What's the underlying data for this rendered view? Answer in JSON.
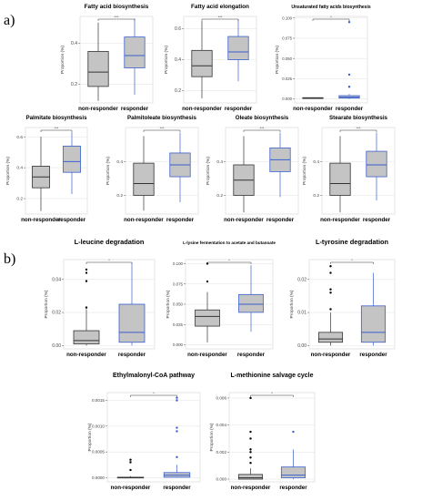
{
  "panels": [
    "a)",
    "b)"
  ],
  "chart_data": [
    {
      "type": "box",
      "title": "Fatty acid biosynthesis",
      "ylabel": "Proportion (%)",
      "categories": [
        "non-responder",
        "responder"
      ],
      "yticks": [
        "0.2",
        "0.4"
      ],
      "ylim": [
        0.11,
        0.53
      ],
      "significance": "***",
      "boxes": [
        {
          "group": "non-responder",
          "min": 0.12,
          "q1": 0.19,
          "median": 0.26,
          "q3": 0.36,
          "max": 0.5,
          "outliers": [],
          "color": "#333333"
        },
        {
          "group": "responder",
          "min": 0.15,
          "q1": 0.28,
          "median": 0.34,
          "q3": 0.43,
          "max": 0.52,
          "outliers": [],
          "color": "#3a5fcd"
        }
      ]
    },
    {
      "type": "box",
      "title": "Fatty acid elongation",
      "ylabel": "Proportion (%)",
      "categories": [
        "non-responder",
        "responder"
      ],
      "yticks": [
        "0.2",
        "0.4",
        "0.6"
      ],
      "ylim": [
        0.12,
        0.68
      ],
      "significance": "***",
      "boxes": [
        {
          "group": "non-responder",
          "min": 0.15,
          "q1": 0.29,
          "median": 0.36,
          "q3": 0.46,
          "max": 0.65,
          "outliers": [],
          "color": "#333333"
        },
        {
          "group": "responder",
          "min": 0.26,
          "q1": 0.4,
          "median": 0.45,
          "q3": 0.55,
          "max": 0.66,
          "outliers": [],
          "color": "#3a5fcd"
        }
      ]
    },
    {
      "type": "box",
      "title": "Unsaturated fatty acids biosynthesis",
      "ylabel": "Proportion (%)",
      "categories": [
        "non-responder",
        "responder"
      ],
      "yticks": [
        "0.000",
        "0.025",
        "0.050",
        "0.075",
        "0.100"
      ],
      "ylim": [
        -0.005,
        0.102
      ],
      "significance": "*",
      "boxes": [
        {
          "group": "non-responder",
          "min": 0.0,
          "q1": 0.0005,
          "median": 0.001,
          "q3": 0.0015,
          "max": 0.002,
          "outliers": [],
          "color": "#333333"
        },
        {
          "group": "responder",
          "min": 0.0,
          "q1": 0.001,
          "median": 0.002,
          "q3": 0.004,
          "max": 0.006,
          "outliers": [
            0.015,
            0.03,
            0.095
          ],
          "color": "#3a5fcd"
        }
      ]
    },
    {
      "type": "box",
      "title": "Palmitate biosynthesis",
      "ylabel": "Proportion (%)",
      "categories": [
        "non-responder",
        "responder"
      ],
      "yticks": [
        "0.2",
        "0.4",
        "0.6"
      ],
      "ylim": [
        0.1,
        0.66
      ],
      "significance": "***",
      "boxes": [
        {
          "group": "non-responder",
          "min": 0.12,
          "q1": 0.27,
          "median": 0.34,
          "q3": 0.41,
          "max": 0.6,
          "outliers": [],
          "color": "#333333"
        },
        {
          "group": "responder",
          "min": 0.23,
          "q1": 0.37,
          "median": 0.44,
          "q3": 0.54,
          "max": 0.63,
          "outliers": [],
          "color": "#3a5fcd"
        }
      ]
    },
    {
      "type": "box",
      "title": "Palmitoleate biosynthesis",
      "ylabel": "Proportion (%)",
      "categories": [
        "non-responder",
        "responder"
      ],
      "yticks": [
        "0.2",
        "0.4"
      ],
      "ylim": [
        0.09,
        0.6
      ],
      "significance": "***",
      "boxes": [
        {
          "group": "non-responder",
          "min": 0.11,
          "q1": 0.2,
          "median": 0.27,
          "q3": 0.39,
          "max": 0.55,
          "outliers": [],
          "color": "#333333"
        },
        {
          "group": "responder",
          "min": 0.16,
          "q1": 0.31,
          "median": 0.38,
          "q3": 0.45,
          "max": 0.57,
          "outliers": [],
          "color": "#3a5fcd"
        }
      ]
    },
    {
      "type": "box",
      "title": "Oleate biosynthesis",
      "ylabel": "Proportion (%)",
      "categories": [
        "non-responder",
        "responder"
      ],
      "yticks": [
        "0.2",
        "0.4"
      ],
      "ylim": [
        0.09,
        0.6
      ],
      "significance": "***",
      "boxes": [
        {
          "group": "non-responder",
          "min": 0.1,
          "q1": 0.2,
          "median": 0.29,
          "q3": 0.38,
          "max": 0.55,
          "outliers": [],
          "color": "#333333"
        },
        {
          "group": "responder",
          "min": 0.19,
          "q1": 0.34,
          "median": 0.41,
          "q3": 0.48,
          "max": 0.57,
          "outliers": [],
          "color": "#3a5fcd"
        }
      ]
    },
    {
      "type": "box",
      "title": "Stearate biosynthesis",
      "ylabel": "Proportion (%)",
      "categories": [
        "non-responder",
        "responder"
      ],
      "yticks": [
        "0.2",
        "0.4"
      ],
      "ylim": [
        0.09,
        0.6
      ],
      "significance": "***",
      "boxes": [
        {
          "group": "non-responder",
          "min": 0.1,
          "q1": 0.2,
          "median": 0.27,
          "q3": 0.39,
          "max": 0.55,
          "outliers": [],
          "color": "#333333"
        },
        {
          "group": "responder",
          "min": 0.17,
          "q1": 0.31,
          "median": 0.38,
          "q3": 0.46,
          "max": 0.57,
          "outliers": [],
          "color": "#3a5fcd"
        }
      ]
    },
    {
      "type": "box",
      "title": "L-leucine degradation",
      "ylabel": "Proportion (%)",
      "categories": [
        "non-responder",
        "responder"
      ],
      "yticks": [
        "0.00",
        "0.02",
        "0.04"
      ],
      "ylim": [
        -0.002,
        0.052
      ],
      "significance": "*",
      "boxes": [
        {
          "group": "non-responder",
          "min": 0.0,
          "q1": 0.001,
          "median": 0.003,
          "q3": 0.009,
          "max": 0.022,
          "outliers": [
            0.023,
            0.039,
            0.044,
            0.046
          ],
          "color": "#333333"
        },
        {
          "group": "responder",
          "min": 0.0,
          "q1": 0.002,
          "median": 0.008,
          "q3": 0.025,
          "max": 0.05,
          "outliers": [],
          "color": "#3a5fcd"
        }
      ]
    },
    {
      "type": "box",
      "title": "L-lysine fermentation to acetate and butanoate",
      "ylabel": "Proportion (%)",
      "categories": [
        "non-responder",
        "responder"
      ],
      "yticks": [
        "0.000",
        "0.025",
        "0.050",
        "0.075",
        "0.100"
      ],
      "ylim": [
        -0.005,
        0.105
      ],
      "significance": "*",
      "boxes": [
        {
          "group": "non-responder",
          "min": 0.003,
          "q1": 0.023,
          "median": 0.035,
          "q3": 0.043,
          "max": 0.065,
          "outliers": [
            0.078,
            0.1
          ],
          "color": "#333333"
        },
        {
          "group": "responder",
          "min": 0.016,
          "q1": 0.04,
          "median": 0.05,
          "q3": 0.062,
          "max": 0.098,
          "outliers": [],
          "color": "#3a5fcd"
        }
      ]
    },
    {
      "type": "box",
      "title": "L-tyrosine degradation",
      "ylabel": "Proportion (%)",
      "categories": [
        "non-responder",
        "responder"
      ],
      "yticks": [
        "0.00",
        "0.01",
        "0.02"
      ],
      "ylim": [
        -0.001,
        0.026
      ],
      "significance": "*",
      "boxes": [
        {
          "group": "non-responder",
          "min": 0.0,
          "q1": 0.001,
          "median": 0.002,
          "q3": 0.004,
          "max": 0.01,
          "outliers": [
            0.011,
            0.016,
            0.017,
            0.022,
            0.024
          ],
          "color": "#333333"
        },
        {
          "group": "responder",
          "min": 0.0,
          "q1": 0.001,
          "median": 0.004,
          "q3": 0.012,
          "max": 0.022,
          "outliers": [],
          "color": "#3a5fcd"
        }
      ]
    },
    {
      "type": "box",
      "title": "Ethylmalonyl-CoA pathway",
      "ylabel": "Proportion (%)",
      "categories": [
        "non-responder",
        "responder"
      ],
      "yticks": [
        "0.0000",
        "0.0005",
        "0.0010",
        "0.0015"
      ],
      "ylim": [
        -8e-05,
        0.00165
      ],
      "significance": "*",
      "boxes": [
        {
          "group": "non-responder",
          "min": 0.0,
          "q1": 0.0,
          "median": 0.0,
          "q3": 1e-05,
          "max": 3e-05,
          "outliers": [
            0.00015,
            0.0003,
            0.00035
          ],
          "color": "#333333"
        },
        {
          "group": "responder",
          "min": 0.0,
          "q1": 1e-05,
          "median": 5e-05,
          "q3": 0.0001,
          "max": 0.00025,
          "outliers": [
            0.0004,
            0.0009,
            0.00097,
            0.0015,
            0.00155
          ],
          "color": "#3a5fcd"
        }
      ]
    },
    {
      "type": "box",
      "title": "L-methionine salvage cycle",
      "ylabel": "Proportion (%)",
      "categories": [
        "non-responder",
        "responder"
      ],
      "yticks": [
        "0.000",
        "0.002",
        "0.004",
        "0.006"
      ],
      "ylim": [
        -0.0002,
        0.0064
      ],
      "significance": "*",
      "boxes": [
        {
          "group": "non-responder",
          "min": 0.0,
          "q1": 0.0,
          "median": 0.0001,
          "q3": 0.00035,
          "max": 0.0008,
          "outliers": [
            0.0012,
            0.0016,
            0.002,
            0.0022,
            0.003,
            0.0035,
            0.006
          ],
          "color": "#333333"
        },
        {
          "group": "responder",
          "min": 0.0,
          "q1": 0.0001,
          "median": 0.0003,
          "q3": 0.0009,
          "max": 0.0022,
          "outliers": [
            0.0035
          ],
          "color": "#3a5fcd"
        }
      ]
    }
  ]
}
